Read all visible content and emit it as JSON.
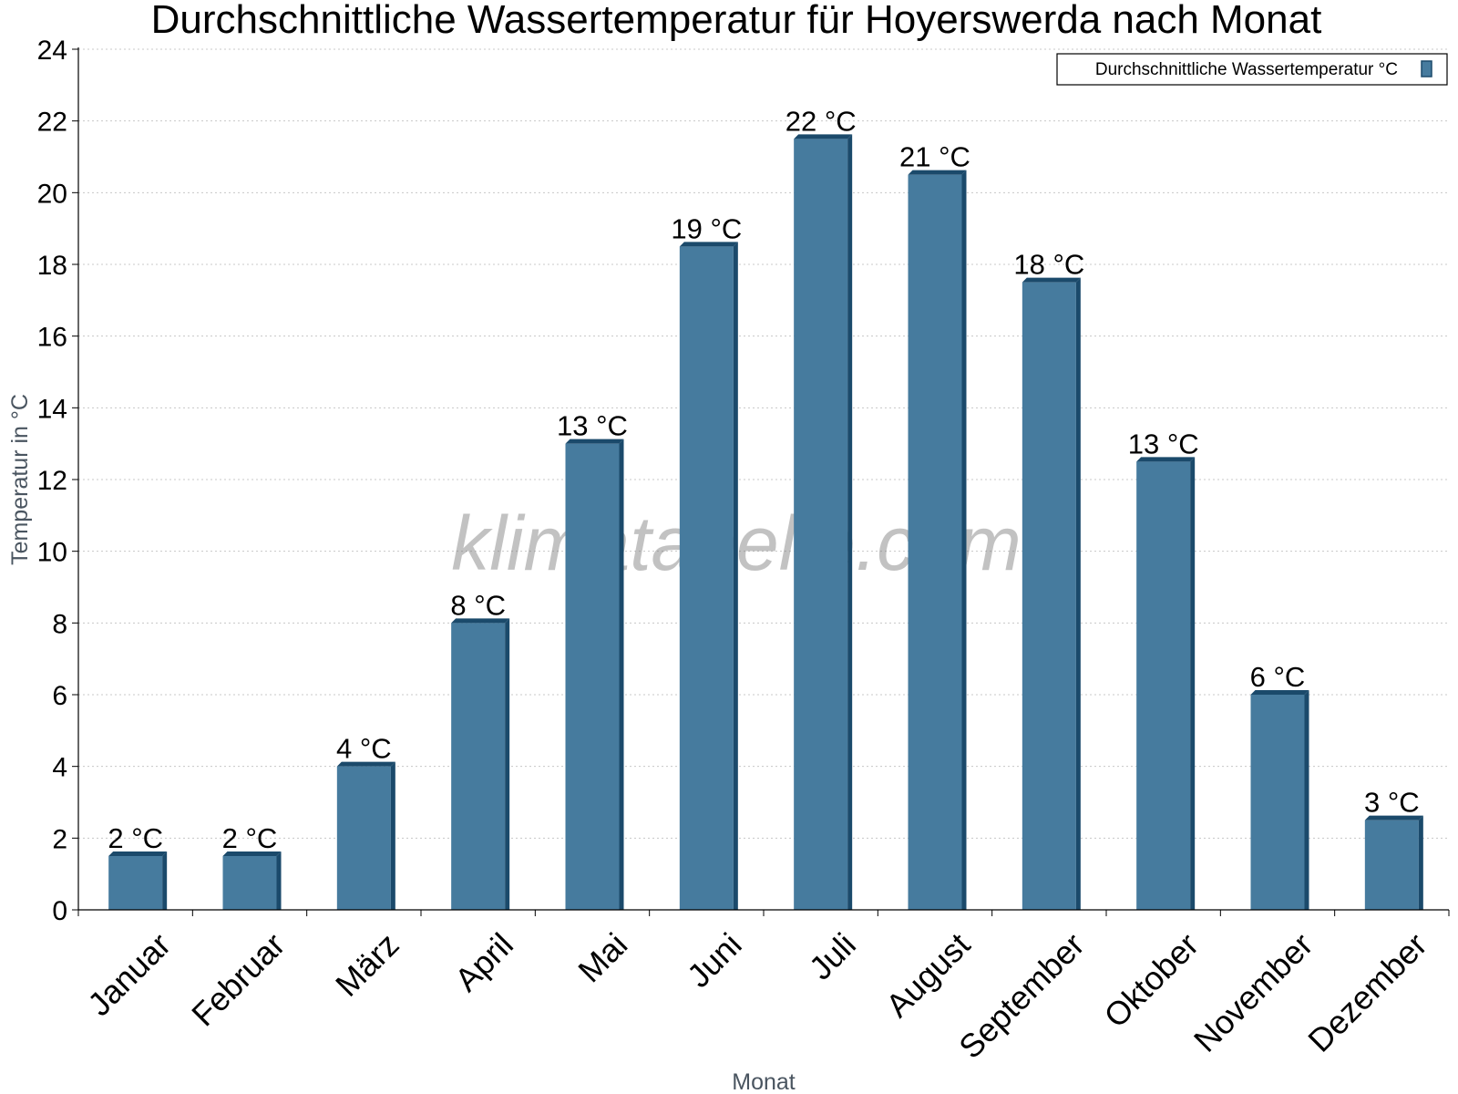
{
  "chart_data": {
    "type": "bar",
    "title": "Durchschnittliche Wassertemperatur für Hoyerswerda nach Monat",
    "xlabel": "Monat",
    "ylabel": "Temperatur in °C",
    "ylim": [
      0,
      24
    ],
    "yticks": [
      0,
      2,
      4,
      6,
      8,
      10,
      12,
      14,
      16,
      18,
      20,
      22,
      24
    ],
    "grid": true,
    "legend_position": "top-right",
    "categories": [
      "Januar",
      "Februar",
      "März",
      "April",
      "Mai",
      "Juni",
      "Juli",
      "August",
      "September",
      "Oktober",
      "November",
      "Dezember"
    ],
    "series": [
      {
        "name": "Durchschnittliche Wassertemperatur °C",
        "values": [
          1.5,
          1.5,
          4,
          8,
          13,
          18.5,
          21.5,
          20.5,
          17.5,
          12.5,
          6,
          2.5
        ],
        "labels": [
          "2 °C",
          "2 °C",
          "4 °C",
          "8 °C",
          "13 °C",
          "19 °C",
          "22 °C",
          "21 °C",
          "18 °C",
          "13 °C",
          "6 °C",
          "3 °C"
        ],
        "color": "#467b9e",
        "edge_color": "#1b4a6b"
      }
    ],
    "watermark": "klimatabelle.com"
  }
}
